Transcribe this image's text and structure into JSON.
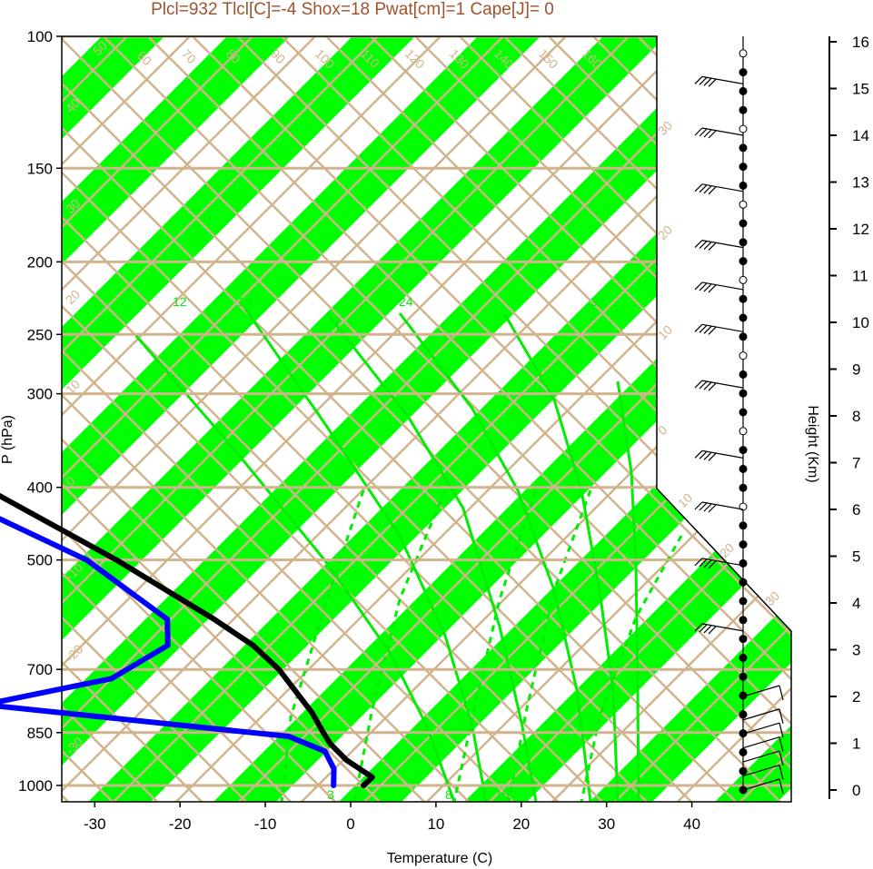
{
  "title": "Plcl=932 Tlcl[C]=-4 Shox=18 Pwat[cm]=1 Cape[J]= 0",
  "colors": {
    "isotherm_band": "#00ff00",
    "adiabat_line": "#d2b48c",
    "mixing_ratio_line": "#00ee00",
    "temperature_profile": "#000000",
    "dewpoint_profile": "#0000ff",
    "wind_barbs": "#000000"
  },
  "chart_data": {
    "type": "line",
    "title": "Plcl=932 Tlcl[C]=-4 Shox=18 Pwat[cm]=1 Cape[J]= 0",
    "xlabel": "Temperature (C)",
    "ylabel": "P (hPa)",
    "y2label": "Height (Km)",
    "xlim": [
      -34,
      52
    ],
    "ylim": [
      1050,
      100
    ],
    "yscale": "log-pressure (skew-T)",
    "x_ticks": [
      "-30",
      "-20",
      "-10",
      "0",
      "10",
      "20",
      "30",
      "40"
    ],
    "y_ticks": [
      "100",
      "150",
      "200",
      "250",
      "300",
      "400",
      "500",
      "700",
      "850",
      "1000"
    ],
    "height_ticks": [
      "0",
      "1",
      "2",
      "3",
      "4",
      "5",
      "6",
      "7",
      "8",
      "9",
      "10",
      "11",
      "12",
      "13",
      "14",
      "15",
      "16"
    ],
    "isotherm_labels": [
      "50",
      "40",
      "30",
      "20",
      "10",
      "0",
      "-10",
      "-20",
      "-30"
    ],
    "adiabat_labels": [
      "60",
      "70",
      "80",
      "90",
      "100",
      "110",
      "120",
      "130",
      "140",
      "150",
      "160",
      "30",
      "20",
      "10",
      "0",
      "10",
      "20",
      "30"
    ],
    "mixing_ratio_labels": [
      "12",
      "16",
      "24",
      "32",
      "3",
      "8",
      "16"
    ],
    "series": [
      {
        "name": "",
        "color": "#000000",
        "points": [
          {
            "p": 1000,
            "t": 1.5
          },
          {
            "p": 975,
            "t": 3.5
          },
          {
            "p": 925,
            "t": 2.5
          },
          {
            "p": 880,
            "t": 2.5
          },
          {
            "p": 850,
            "t": 3.0
          },
          {
            "p": 800,
            "t": 4.0
          },
          {
            "p": 700,
            "t": 5.2
          },
          {
            "p": 650,
            "t": 5.0
          },
          {
            "p": 600,
            "t": 3.5
          },
          {
            "p": 500,
            "t": -1.0
          },
          {
            "p": 400,
            "t": -8.0
          },
          {
            "p": 300,
            "t": -16.0
          },
          {
            "p": 250,
            "t": -21.5
          },
          {
            "p": 225,
            "t": -19.0
          },
          {
            "p": 200,
            "t": -15.5
          },
          {
            "p": 175,
            "t": -9.5
          },
          {
            "p": 150,
            "t": -4.5
          },
          {
            "p": 125,
            "t": 2.5
          },
          {
            "p": 110,
            "t": 6.0
          }
        ]
      },
      {
        "name": "",
        "color": "#0000ff",
        "points": [
          {
            "p": 1000,
            "t": -2.0
          },
          {
            "p": 950,
            "t": 0.0
          },
          {
            "p": 900,
            "t": 1.0
          },
          {
            "p": 860,
            "t": -1.5
          },
          {
            "p": 780,
            "t": -33.5
          },
          {
            "p": 720,
            "t": -15.5
          },
          {
            "p": 650,
            "t": -5.0
          },
          {
            "p": 600,
            "t": -2.0
          },
          {
            "p": 500,
            "t": -4.5
          },
          {
            "p": 400,
            "t": -14.0
          },
          {
            "p": 325,
            "t": -21.0
          },
          {
            "p": 300,
            "t": -26.0
          },
          {
            "p": 265,
            "t": -28.0
          },
          {
            "p": 250,
            "t": -31.0
          },
          {
            "p": 200,
            "t": -30.5
          },
          {
            "p": 175,
            "t": -37.5
          },
          {
            "p": 110,
            "t": -23.5
          }
        ]
      }
    ],
    "wind_barbs": [
      {
        "height_km": 0.0
      },
      {
        "height_km": 0.3
      },
      {
        "height_km": 0.6
      },
      {
        "height_km": 0.9
      },
      {
        "height_km": 1.2
      },
      {
        "height_km": 1.5
      },
      {
        "height_km": 2.0
      },
      {
        "height_km": 3.4
      },
      {
        "height_km": 4.8
      },
      {
        "height_km": 6.0
      },
      {
        "height_km": 7.1
      },
      {
        "height_km": 8.6
      },
      {
        "height_km": 9.8
      },
      {
        "height_km": 10.7
      },
      {
        "height_km": 11.6
      },
      {
        "height_km": 12.8
      },
      {
        "height_km": 14.0
      },
      {
        "height_km": 15.1
      }
    ],
    "grid": true,
    "legend": "none"
  }
}
